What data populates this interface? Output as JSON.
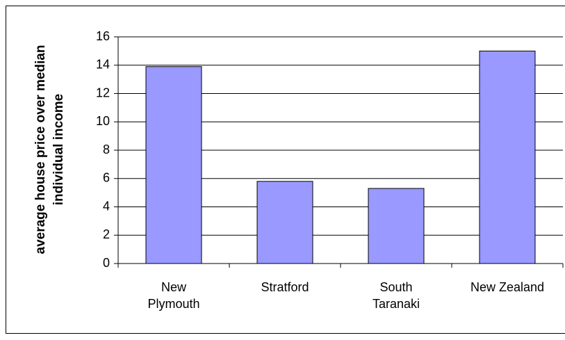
{
  "chart_data": {
    "type": "bar",
    "y_label": "average house price over median individual income",
    "categories": [
      "New Plymouth",
      "Stratford",
      "South Taranaki",
      "New Zealand"
    ],
    "values": [
      13.9,
      5.8,
      5.3,
      15.0
    ],
    "color": "#9999ff",
    "ylim": [
      0,
      16
    ],
    "yticks": [
      0,
      2,
      4,
      6,
      8,
      10,
      12,
      14,
      16
    ],
    "grid": true
  }
}
